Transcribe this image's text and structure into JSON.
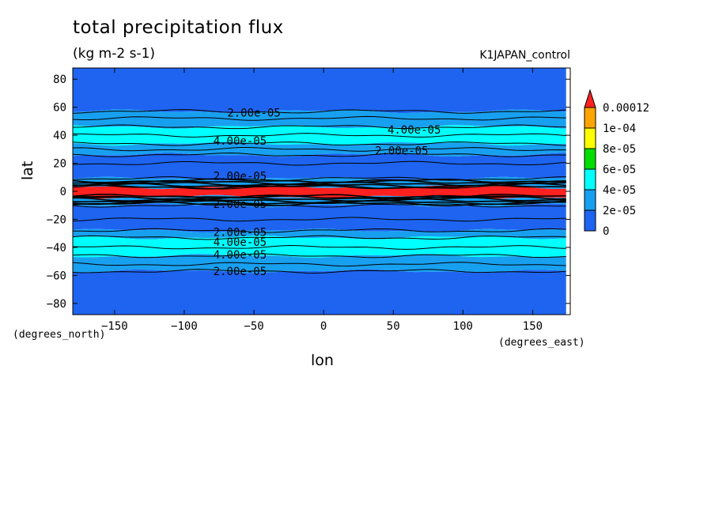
{
  "header": {
    "title": "total precipitation flux",
    "units": "(kg m-2 s-1)",
    "run_label": "K1JAPAN_control"
  },
  "axes": {
    "xlabel": "lon",
    "ylabel": "lat",
    "x_units": "(degrees_east)",
    "y_units": "(degrees_north)"
  },
  "chart_data": {
    "type": "heatmap",
    "title": "total precipitation flux",
    "subtitle": "(kg m-2 s-1)",
    "xlabel": "lon",
    "ylabel": "lat",
    "xlim": [
      -180,
      177
    ],
    "ylim": [
      -88,
      88
    ],
    "x_ticks": [
      -150,
      -100,
      -50,
      0,
      50,
      100,
      150
    ],
    "y_ticks": [
      -80,
      -60,
      -40,
      -20,
      0,
      20,
      40,
      60,
      80
    ],
    "colorbar": {
      "levels": [
        "0",
        "2e-05",
        "4e-05",
        "6e-05",
        "8e-05",
        "1e-04",
        "0.00012"
      ],
      "colors": [
        "#1e64f0",
        "#18a0f0",
        "#00ffff",
        "#00dd00",
        "#ffff00",
        "#ffa500",
        "#ff2020"
      ]
    },
    "zonal_bands": [
      {
        "lat_from": 88,
        "lat_to": 57,
        "level_index": 0
      },
      {
        "lat_from": 57,
        "lat_to": 46,
        "level_index": 1
      },
      {
        "lat_from": 46,
        "lat_to": 34,
        "level_index": 2
      },
      {
        "lat_from": 34,
        "lat_to": 26,
        "level_index": 1
      },
      {
        "lat_from": 26,
        "lat_to": 9,
        "level_index": 0
      },
      {
        "lat_from": 9,
        "lat_to": 3,
        "level_index": 1
      },
      {
        "lat_from": 3,
        "lat_to": -4,
        "level_index": 6
      },
      {
        "lat_from": -4,
        "lat_to": -10,
        "level_index": 1
      },
      {
        "lat_from": -10,
        "lat_to": -28,
        "level_index": 0
      },
      {
        "lat_from": -28,
        "lat_to": -33,
        "level_index": 1
      },
      {
        "lat_from": -33,
        "lat_to": -46,
        "level_index": 2
      },
      {
        "lat_from": -46,
        "lat_to": -57,
        "level_index": 1
      },
      {
        "lat_from": -57,
        "lat_to": -88,
        "level_index": 0
      }
    ],
    "contour_labels": [
      {
        "text": "2.00e-05",
        "lon": -50,
        "lat": 56
      },
      {
        "text": "4.00e-05",
        "lon": 65,
        "lat": 44
      },
      {
        "text": "4.00e-05",
        "lon": -60,
        "lat": 36
      },
      {
        "text": "2.00e-05",
        "lon": 56,
        "lat": 29
      },
      {
        "text": "2.00e-05",
        "lon": -60,
        "lat": 11
      },
      {
        "text": "2.00e-05",
        "lon": -60,
        "lat": -9
      },
      {
        "text": "2.00e-05",
        "lon": -60,
        "lat": -29
      },
      {
        "text": "4.00e-05",
        "lon": -60,
        "lat": -36
      },
      {
        "text": "4.00e-05",
        "lon": -60,
        "lat": -45
      },
      {
        "text": "2.00e-05",
        "lon": -60,
        "lat": -57
      }
    ]
  }
}
